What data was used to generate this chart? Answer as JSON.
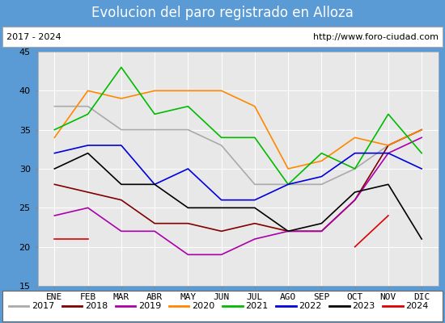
{
  "title": "Evolucion del paro registrado en Alloza",
  "subtitle_left": "2017 - 2024",
  "subtitle_right": "http://www.foro-ciudad.com",
  "xlabel_months": [
    "ENE",
    "FEB",
    "MAR",
    "ABR",
    "MAY",
    "JUN",
    "JUL",
    "AGO",
    "SEP",
    "OCT",
    "NOV",
    "DIC"
  ],
  "ylim": [
    15,
    45
  ],
  "yticks": [
    15,
    20,
    25,
    30,
    35,
    40,
    45
  ],
  "series": {
    "2017": {
      "color": "#aaaaaa",
      "data": [
        38,
        38,
        35,
        35,
        35,
        33,
        28,
        28,
        28,
        30,
        33,
        35
      ]
    },
    "2018": {
      "color": "#800000",
      "data": [
        28,
        27,
        26,
        23,
        23,
        22,
        23,
        22,
        22,
        26,
        33,
        35
      ]
    },
    "2019": {
      "color": "#aa00aa",
      "data": [
        24,
        25,
        22,
        22,
        19,
        19,
        21,
        22,
        22,
        26,
        32,
        34
      ]
    },
    "2020": {
      "color": "#ff8800",
      "data": [
        34,
        40,
        39,
        40,
        40,
        40,
        38,
        30,
        31,
        34,
        33,
        35
      ]
    },
    "2021": {
      "color": "#00bb00",
      "data": [
        35,
        37,
        43,
        37,
        38,
        34,
        34,
        28,
        32,
        30,
        37,
        32
      ]
    },
    "2022": {
      "color": "#0000dd",
      "data": [
        32,
        33,
        33,
        28,
        30,
        26,
        26,
        28,
        29,
        32,
        32,
        30
      ]
    },
    "2023": {
      "color": "#000000",
      "data": [
        30,
        32,
        28,
        28,
        25,
        25,
        25,
        22,
        23,
        27,
        28,
        21
      ]
    },
    "2024": {
      "color": "#dd0000",
      "data": [
        21,
        21,
        null,
        null,
        null,
        null,
        null,
        null,
        null,
        20,
        24,
        null
      ]
    }
  },
  "outer_bg_color": "#5b9bd5",
  "inner_bg_color": "#e8e8e8",
  "plot_bg_color": "#e8e8e8",
  "title_bg_color": "#5b9bd5",
  "title_font_color": "#ffffff",
  "subtitle_bg_color": "#ffffff",
  "subtitle_border_color": "#aaaaaa",
  "legend_bg_color": "#ffffff",
  "legend_border_color": "#666666",
  "title_fontsize": 12,
  "subtitle_fontsize": 8,
  "tick_fontsize": 8,
  "legend_fontsize": 8
}
